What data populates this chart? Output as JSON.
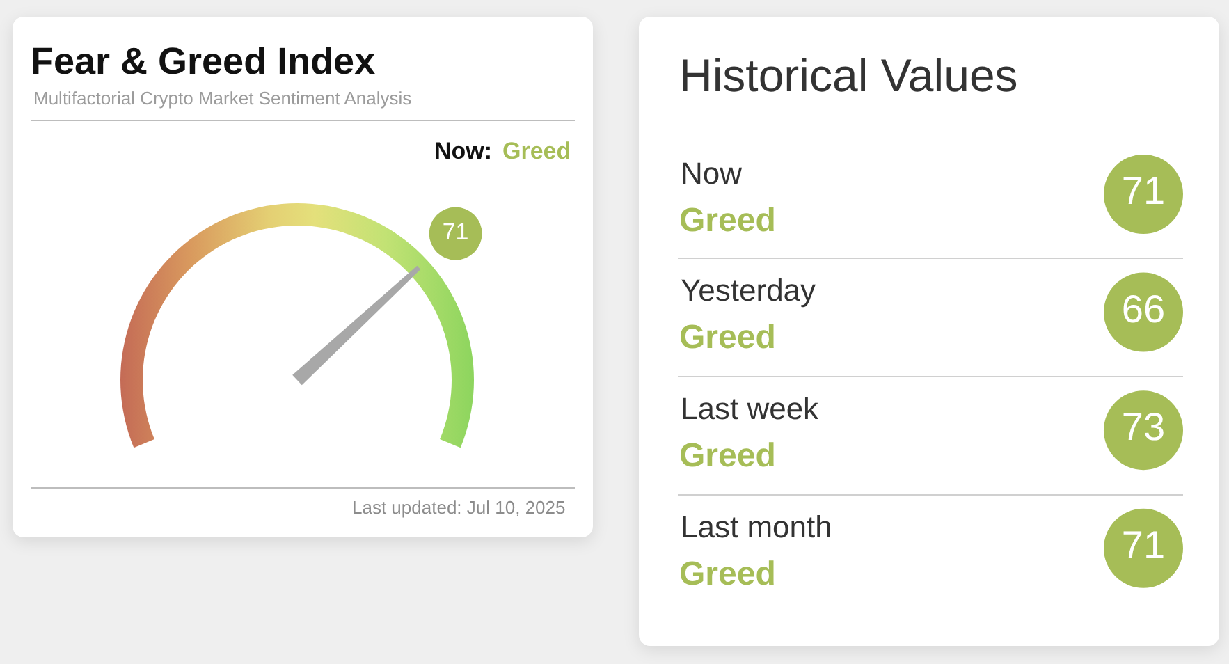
{
  "chart_data": [
    {
      "type": "other",
      "title": "Fear & Greed Index",
      "subtitle": "Multifactorial Crypto Market Sentiment Analysis",
      "values": [
        71
      ],
      "data_labels": true,
      "color": "#a6bd57",
      "annotations": [
        "Now:",
        "Greed",
        "Last updated: Jul 10, 2025"
      ]
    },
    {
      "type": "other",
      "title": "Historical Values",
      "categories": [
        "Now",
        "Yesterday",
        "Last week",
        "Last month"
      ],
      "values": [
        71,
        66,
        73,
        71
      ],
      "data_labels": true,
      "color": "#a6bd57",
      "annotations": [
        "Greed",
        "Greed",
        "Greed",
        "Greed"
      ]
    }
  ]
}
